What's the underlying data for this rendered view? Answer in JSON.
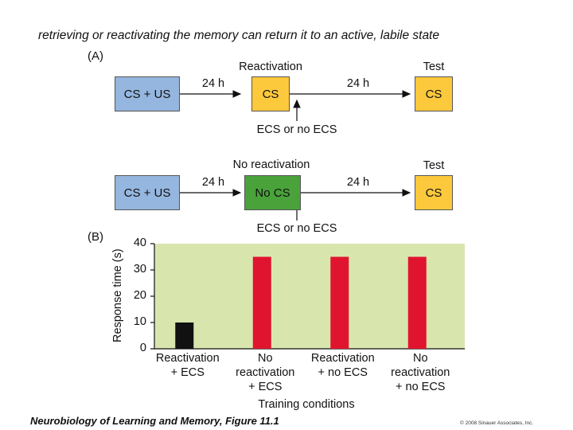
{
  "headline": "retrieving or reactivating the memory can return it to an active, labile state",
  "panel_a": {
    "label": "(A)",
    "rows": [
      {
        "box1": "CS + US",
        "interval1": "24 h",
        "stage_title": "Reactivation",
        "box2": "CS",
        "interval2": "24 h",
        "test_title": "Test",
        "box3": "CS",
        "treatment": "ECS or no ECS"
      },
      {
        "box1": "CS + US",
        "interval1": "24 h",
        "stage_title": "No reactivation",
        "box2": "No CS",
        "interval2": "24 h",
        "test_title": "Test",
        "box3": "CS",
        "treatment": "ECS or no ECS"
      }
    ]
  },
  "panel_b": {
    "label": "(B)"
  },
  "chart_data": {
    "type": "bar",
    "categories": [
      [
        "Reactivation",
        "+ ECS"
      ],
      [
        "No",
        "reactivation",
        "+ ECS"
      ],
      [
        "Reactivation",
        "+ no ECS"
      ],
      [
        "No",
        "reactivation",
        "+ no ECS"
      ]
    ],
    "values": [
      10,
      35,
      35,
      35
    ],
    "bar_colors": [
      "#111111",
      "#e0142f",
      "#e0142f",
      "#e0142f"
    ],
    "ylabel": "Response time (s)",
    "xlabel": "Training conditions",
    "ylim": [
      0,
      40
    ],
    "yticks": [
      0,
      10,
      20,
      30,
      40
    ],
    "background": "#d8e6ae",
    "grid": false
  },
  "footer": {
    "title": "Neurobiology of Learning and Memory, Figure 11.1",
    "copyright": "© 2008 Sinauer Associates, Inc."
  },
  "colors": {
    "blue_box": "#95b6df",
    "yellow_box": "#fcc93c",
    "green_box": "#4aa23b"
  }
}
